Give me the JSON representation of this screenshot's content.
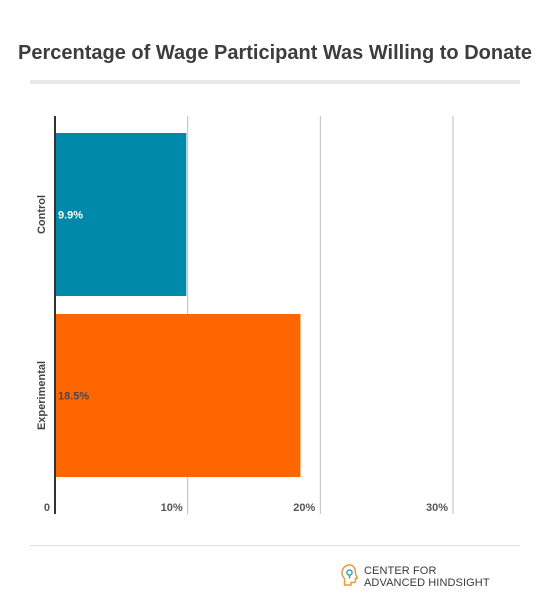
{
  "chart_data": {
    "type": "bar",
    "orientation": "horizontal",
    "title": "Percentage of Wage Participant Was Willing to Donate",
    "categories": [
      "Control",
      "Experimental"
    ],
    "values": [
      9.9,
      18.5
    ],
    "value_labels": [
      "9.9%",
      "18.5%"
    ],
    "colors": [
      "#0089a8",
      "#ff6600"
    ],
    "x_ticks": [
      0,
      10,
      20,
      30
    ],
    "x_tick_labels": [
      "0",
      "10%",
      "20%",
      "30%"
    ],
    "xlim": [
      0,
      30
    ],
    "grid": true,
    "legend": "none"
  },
  "branding": {
    "line1": "CENTER FOR",
    "line2": "ADVANCED HINDSIGHT",
    "logo_icon": "head-silhouette-icon"
  }
}
